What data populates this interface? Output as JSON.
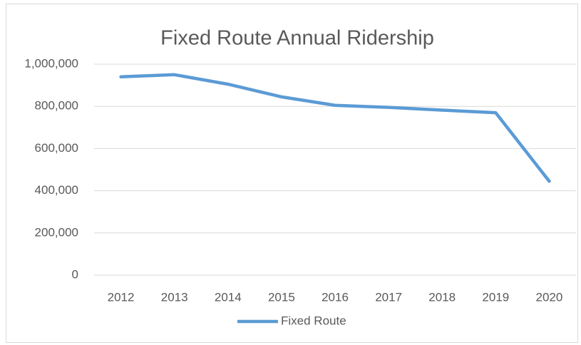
{
  "chart_data": {
    "type": "line",
    "title": "Fixed Route Annual Ridership",
    "categories": [
      "2012",
      "2013",
      "2014",
      "2015",
      "2016",
      "2017",
      "2018",
      "2019",
      "2020"
    ],
    "series": [
      {
        "name": "Fixed Route",
        "color": "#5b9bd5",
        "values": [
          940000,
          950000,
          905000,
          845000,
          805000,
          795000,
          782000,
          770000,
          445000
        ]
      }
    ],
    "ylim": [
      0,
      1000000
    ],
    "yticks": [
      0,
      {
        "value": 200000,
        "label": "200,000"
      },
      {
        "value": 400000,
        "label": "400,000"
      },
      {
        "value": 600000,
        "label": "600,000"
      },
      {
        "value": 800000,
        "label": "800,000"
      },
      {
        "value": 1000000,
        "label": "1,000,000"
      }
    ],
    "grid": true,
    "legend": "bottom"
  }
}
